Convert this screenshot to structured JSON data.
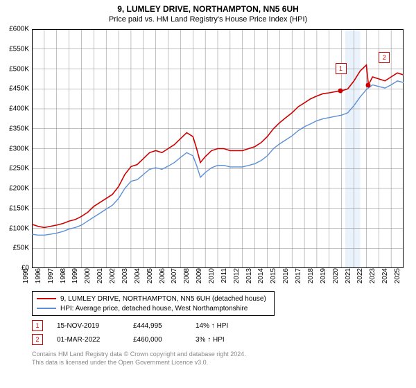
{
  "title": {
    "line1": "9, LUMLEY DRIVE, NORTHAMPTON, NN5 6UH",
    "line2": "Price paid vs. HM Land Registry's House Price Index (HPI)",
    "fontsize_line1": 12,
    "fontsize_line2": 11
  },
  "chart": {
    "type": "line",
    "background_color": "#ffffff",
    "grid_color": "#808080",
    "grid_width": 0.5,
    "highlight_band": {
      "from_year": 2020.3,
      "to_year": 2021.5,
      "color": "#eaf2fb"
    },
    "x": {
      "min": 1995,
      "max": 2025,
      "tick_step": 1,
      "labels": [
        "1995",
        "1996",
        "1997",
        "1998",
        "1999",
        "2000",
        "2001",
        "2002",
        "2003",
        "2004",
        "2005",
        "2006",
        "2007",
        "2008",
        "2009",
        "2010",
        "2011",
        "2012",
        "2013",
        "2014",
        "2015",
        "2016",
        "2017",
        "2018",
        "2019",
        "2020",
        "2021",
        "2022",
        "2023",
        "2024",
        "2025"
      ]
    },
    "y": {
      "min": 0,
      "max": 600000,
      "tick_step": 50000,
      "labels": [
        "£0",
        "£50K",
        "£100K",
        "£150K",
        "£200K",
        "£250K",
        "£300K",
        "£350K",
        "£400K",
        "£450K",
        "£500K",
        "£550K",
        "£600K"
      ]
    },
    "series": [
      {
        "name": "9, LUMLEY DRIVE, NORTHAMPTON, NN5 6UH (detached house)",
        "color": "#cc0000",
        "line_width": 1.6,
        "points": [
          [
            1995,
            110000
          ],
          [
            1995.5,
            105000
          ],
          [
            1996,
            102000
          ],
          [
            1996.5,
            105000
          ],
          [
            1997,
            108000
          ],
          [
            1997.5,
            112000
          ],
          [
            1998,
            118000
          ],
          [
            1998.5,
            122000
          ],
          [
            1999,
            130000
          ],
          [
            1999.5,
            140000
          ],
          [
            2000,
            155000
          ],
          [
            2000.5,
            165000
          ],
          [
            2001,
            175000
          ],
          [
            2001.5,
            185000
          ],
          [
            2002,
            205000
          ],
          [
            2002.5,
            235000
          ],
          [
            2003,
            255000
          ],
          [
            2003.5,
            260000
          ],
          [
            2004,
            275000
          ],
          [
            2004.5,
            290000
          ],
          [
            2005,
            295000
          ],
          [
            2005.5,
            290000
          ],
          [
            2006,
            300000
          ],
          [
            2006.5,
            310000
          ],
          [
            2007,
            325000
          ],
          [
            2007.5,
            340000
          ],
          [
            2008,
            330000
          ],
          [
            2008.3,
            300000
          ],
          [
            2008.6,
            265000
          ],
          [
            2009,
            280000
          ],
          [
            2009.5,
            295000
          ],
          [
            2010,
            300000
          ],
          [
            2010.5,
            300000
          ],
          [
            2011,
            295000
          ],
          [
            2011.5,
            295000
          ],
          [
            2012,
            295000
          ],
          [
            2012.5,
            300000
          ],
          [
            2013,
            305000
          ],
          [
            2013.5,
            315000
          ],
          [
            2014,
            330000
          ],
          [
            2014.5,
            350000
          ],
          [
            2015,
            365000
          ],
          [
            2015.5,
            378000
          ],
          [
            2016,
            390000
          ],
          [
            2016.5,
            405000
          ],
          [
            2017,
            415000
          ],
          [
            2017.5,
            425000
          ],
          [
            2018,
            432000
          ],
          [
            2018.5,
            438000
          ],
          [
            2019,
            440000
          ],
          [
            2019.5,
            443000
          ],
          [
            2019.88,
            444995
          ],
          [
            2020,
            445000
          ],
          [
            2020.5,
            450000
          ],
          [
            2021,
            470000
          ],
          [
            2021.5,
            495000
          ],
          [
            2022,
            510000
          ],
          [
            2022.17,
            460000
          ],
          [
            2022.5,
            480000
          ],
          [
            2023,
            475000
          ],
          [
            2023.5,
            470000
          ],
          [
            2024,
            480000
          ],
          [
            2024.5,
            490000
          ],
          [
            2025,
            485000
          ]
        ]
      },
      {
        "name": "HPI: Average price, detached house, West Northamptonshire",
        "color": "#5b8fd6",
        "line_width": 1.4,
        "points": [
          [
            1995,
            85000
          ],
          [
            1995.5,
            83000
          ],
          [
            1996,
            83000
          ],
          [
            1996.5,
            85000
          ],
          [
            1997,
            88000
          ],
          [
            1997.5,
            92000
          ],
          [
            1998,
            98000
          ],
          [
            1998.5,
            102000
          ],
          [
            1999,
            108000
          ],
          [
            1999.5,
            118000
          ],
          [
            2000,
            128000
          ],
          [
            2000.5,
            138000
          ],
          [
            2001,
            148000
          ],
          [
            2001.5,
            158000
          ],
          [
            2002,
            175000
          ],
          [
            2002.5,
            200000
          ],
          [
            2003,
            218000
          ],
          [
            2003.5,
            222000
          ],
          [
            2004,
            235000
          ],
          [
            2004.5,
            248000
          ],
          [
            2005,
            252000
          ],
          [
            2005.5,
            248000
          ],
          [
            2006,
            256000
          ],
          [
            2006.5,
            265000
          ],
          [
            2007,
            278000
          ],
          [
            2007.5,
            290000
          ],
          [
            2008,
            282000
          ],
          [
            2008.3,
            258000
          ],
          [
            2008.6,
            228000
          ],
          [
            2009,
            240000
          ],
          [
            2009.5,
            252000
          ],
          [
            2010,
            258000
          ],
          [
            2010.5,
            258000
          ],
          [
            2011,
            254000
          ],
          [
            2011.5,
            254000
          ],
          [
            2012,
            254000
          ],
          [
            2012.5,
            258000
          ],
          [
            2013,
            262000
          ],
          [
            2013.5,
            270000
          ],
          [
            2014,
            282000
          ],
          [
            2014.5,
            300000
          ],
          [
            2015,
            312000
          ],
          [
            2015.5,
            322000
          ],
          [
            2016,
            332000
          ],
          [
            2016.5,
            345000
          ],
          [
            2017,
            355000
          ],
          [
            2017.5,
            362000
          ],
          [
            2018,
            370000
          ],
          [
            2018.5,
            375000
          ],
          [
            2019,
            378000
          ],
          [
            2019.5,
            381000
          ],
          [
            2020,
            384000
          ],
          [
            2020.5,
            390000
          ],
          [
            2021,
            408000
          ],
          [
            2021.5,
            430000
          ],
          [
            2022,
            448000
          ],
          [
            2022.5,
            460000
          ],
          [
            2023,
            456000
          ],
          [
            2023.5,
            452000
          ],
          [
            2024,
            460000
          ],
          [
            2024.5,
            470000
          ],
          [
            2025,
            466000
          ]
        ]
      }
    ],
    "sale_markers": [
      {
        "index": "1",
        "year": 2019.88,
        "value": 444995,
        "color": "#cc0000",
        "callout_dx": 0,
        "callout_dy": -40
      },
      {
        "index": "2",
        "year": 2022.17,
        "value": 460000,
        "color": "#cc0000",
        "callout_dx": 22,
        "callout_dy": -48
      }
    ]
  },
  "legend": {
    "items": [
      {
        "label": "9, LUMLEY DRIVE, NORTHAMPTON, NN5 6UH (detached house)",
        "color": "#cc0000"
      },
      {
        "label": "HPI: Average price, detached house, West Northamptonshire",
        "color": "#5b8fd6"
      }
    ]
  },
  "marker_table": [
    {
      "badge": "1",
      "badge_color": "#cc0000",
      "date": "15-NOV-2019",
      "price": "£444,995",
      "delta": "14% ↑ HPI"
    },
    {
      "badge": "2",
      "badge_color": "#cc0000",
      "date": "01-MAR-2022",
      "price": "£460,000",
      "delta": "3% ↑ HPI"
    }
  ],
  "license": {
    "line1": "Contains HM Land Registry data © Crown copyright and database right 2024.",
    "line2": "This data is licensed under the Open Government Licence v3.0."
  }
}
